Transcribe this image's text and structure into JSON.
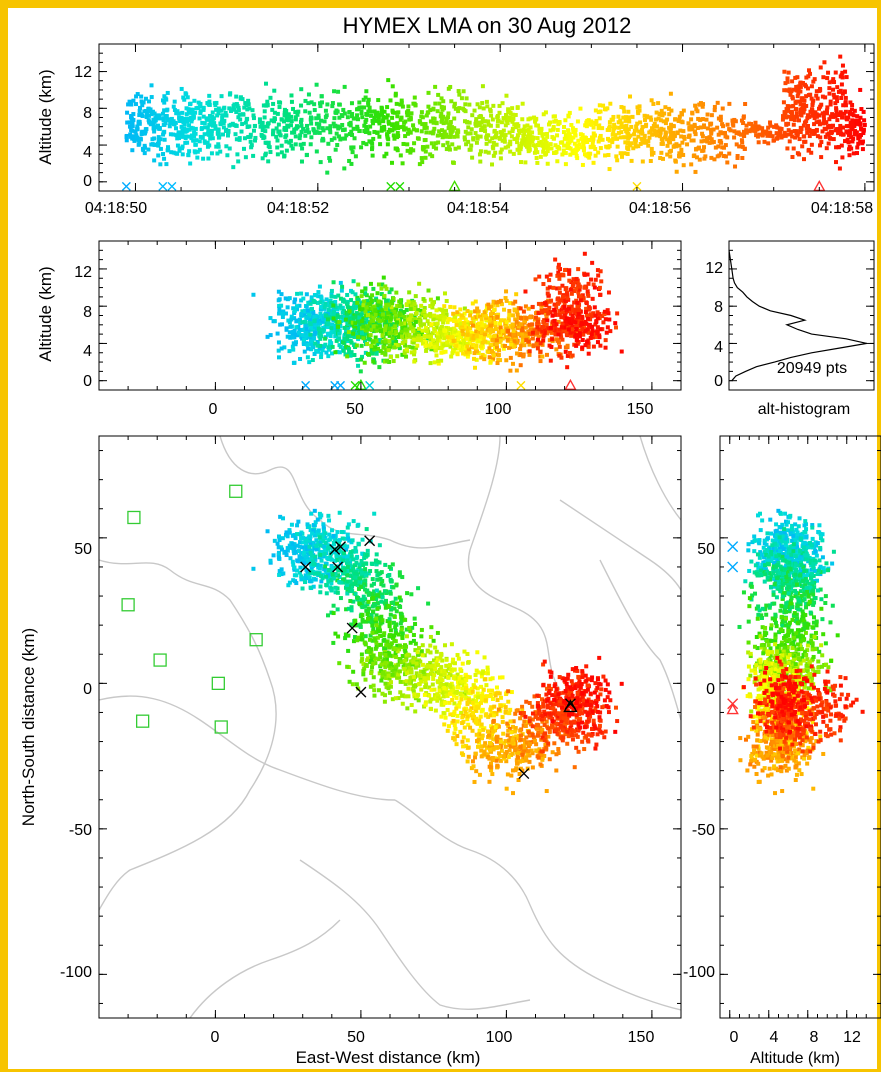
{
  "colors": {
    "frame": "#f7c400",
    "station": "#33cc33",
    "histogram": "#000000",
    "marker_dark": "#000000",
    "map": "#c8c8c8",
    "palette": [
      "#00aaff",
      "#00dddd",
      "#00e07a",
      "#33e000",
      "#aaee00",
      "#ffff00",
      "#ffaa00",
      "#ff5500",
      "#ff0000"
    ]
  },
  "chart_data": [
    {
      "id": "time-altitude",
      "type": "scatter",
      "title": "HYMEX LMA on 30 Aug 2012",
      "ylabel": "Altitude (km)",
      "xlabel": "",
      "x_tick_labels": [
        "04:18:50",
        "04:18:52",
        "04:18:54",
        "04:18:56",
        "04:18:58"
      ],
      "x_ticks_seconds": [
        50,
        52,
        54,
        56,
        58
      ],
      "xlim_seconds": [
        49.6,
        58.1
      ],
      "y_ticks": [
        0,
        4,
        8,
        12
      ],
      "ylim": [
        -1,
        15
      ],
      "color_by": "time",
      "bursts": [
        {
          "t_start": 49.9,
          "t_end": 51.0,
          "alt_lo": 1.5,
          "alt_hi": 10.5,
          "n": 380
        },
        {
          "t_start": 51.0,
          "t_end": 52.8,
          "alt_lo": 1.0,
          "alt_hi": 11.5,
          "n": 420
        },
        {
          "t_start": 52.8,
          "t_end": 54.2,
          "alt_lo": 1.0,
          "alt_hi": 11.0,
          "n": 360
        },
        {
          "t_start": 54.2,
          "t_end": 55.0,
          "alt_lo": 1.0,
          "alt_hi": 8.5,
          "n": 220
        },
        {
          "t_start": 55.0,
          "t_end": 56.7,
          "alt_lo": 0.5,
          "alt_hi": 10.0,
          "n": 420
        },
        {
          "t_start": 56.7,
          "t_end": 57.1,
          "alt_lo": 4.0,
          "alt_hi": 7.0,
          "n": 60
        },
        {
          "t_start": 57.1,
          "t_end": 57.8,
          "alt_lo": 0.5,
          "alt_hi": 14.5,
          "n": 300
        },
        {
          "t_start": 57.8,
          "t_end": 58.0,
          "alt_lo": 1.5,
          "alt_hi": 10.0,
          "n": 80
        }
      ],
      "markers": [
        {
          "t": 49.9,
          "alt": -0.5,
          "symbol": "x",
          "color": "#00aaff"
        },
        {
          "t": 50.3,
          "alt": -0.5,
          "symbol": "x",
          "color": "#00bbff"
        },
        {
          "t": 50.4,
          "alt": -0.5,
          "symbol": "x",
          "color": "#00bbff"
        },
        {
          "t": 52.8,
          "alt": -0.5,
          "symbol": "x",
          "color": "#22dd00"
        },
        {
          "t": 52.9,
          "alt": -0.5,
          "symbol": "x",
          "color": "#22dd00"
        },
        {
          "t": 53.5,
          "alt": -0.5,
          "symbol": "triangle",
          "color": "#44dd00"
        },
        {
          "t": 55.5,
          "alt": -0.5,
          "symbol": "x",
          "color": "#ffdd00"
        },
        {
          "t": 57.5,
          "alt": -0.5,
          "symbol": "triangle",
          "color": "#ff3333"
        }
      ]
    },
    {
      "id": "ew-altitude",
      "type": "scatter",
      "ylabel": "Altitude (km)",
      "x_ticks": [
        0,
        50,
        100,
        150
      ],
      "xlim": [
        -40,
        160
      ],
      "y_ticks": [
        0,
        4,
        8,
        12
      ],
      "ylim": [
        -1,
        15
      ],
      "color_by": "time",
      "markers": [
        {
          "x": 31,
          "alt": -0.5,
          "symbol": "x",
          "color": "#00aaff"
        },
        {
          "x": 41,
          "alt": -0.5,
          "symbol": "x",
          "color": "#00aaff"
        },
        {
          "x": 43,
          "alt": -0.5,
          "symbol": "x",
          "color": "#00aaff"
        },
        {
          "x": 48,
          "alt": -0.5,
          "symbol": "x",
          "color": "#22dd00"
        },
        {
          "x": 50,
          "alt": -0.5,
          "symbol": "triangle",
          "color": "#22dd00"
        },
        {
          "x": 53,
          "alt": -0.5,
          "symbol": "x",
          "color": "#00ccdd"
        },
        {
          "x": 105,
          "alt": -0.5,
          "symbol": "x",
          "color": "#ffdd00"
        },
        {
          "x": 122,
          "alt": -0.5,
          "symbol": "triangle",
          "color": "#ff3333"
        }
      ]
    },
    {
      "id": "alt-histogram",
      "type": "line",
      "caption": "alt-histogram",
      "annotation": "20949 pts",
      "y_ticks": [
        0,
        4,
        8,
        12
      ],
      "ylim": [
        -1,
        15
      ],
      "xlim": [
        0,
        1
      ],
      "profile": [
        {
          "alt": 0,
          "count": 0.02
        },
        {
          "alt": 0.5,
          "count": 0.05
        },
        {
          "alt": 1,
          "count": 0.12
        },
        {
          "alt": 1.5,
          "count": 0.2
        },
        {
          "alt": 2,
          "count": 0.33
        },
        {
          "alt": 2.5,
          "count": 0.45
        },
        {
          "alt": 3,
          "count": 0.6
        },
        {
          "alt": 3.5,
          "count": 0.8
        },
        {
          "alt": 4,
          "count": 1.0
        },
        {
          "alt": 4.5,
          "count": 0.85
        },
        {
          "alt": 5,
          "count": 0.6
        },
        {
          "alt": 5.5,
          "count": 0.5
        },
        {
          "alt": 6,
          "count": 0.42
        },
        {
          "alt": 6.5,
          "count": 0.55
        },
        {
          "alt": 7,
          "count": 0.45
        },
        {
          "alt": 7.5,
          "count": 0.3
        },
        {
          "alt": 8,
          "count": 0.22
        },
        {
          "alt": 8.5,
          "count": 0.17
        },
        {
          "alt": 9,
          "count": 0.13
        },
        {
          "alt": 9.5,
          "count": 0.1
        },
        {
          "alt": 10,
          "count": 0.06
        },
        {
          "alt": 10.5,
          "count": 0.04
        },
        {
          "alt": 11,
          "count": 0.03
        },
        {
          "alt": 12,
          "count": 0.02
        },
        {
          "alt": 13,
          "count": 0.01
        },
        {
          "alt": 14,
          "count": 0.0
        }
      ]
    },
    {
      "id": "plan-view",
      "type": "scatter",
      "xlabel": "East-West distance (km)",
      "ylabel": "North-South distance (km)",
      "x_ticks": [
        0,
        50,
        100,
        150
      ],
      "xlim": [
        -40,
        160
      ],
      "y_ticks": [
        -100,
        -50,
        0,
        50
      ],
      "ylim": [
        -115,
        85
      ],
      "color_by": "time",
      "stations": [
        {
          "x": -28,
          "y": 57
        },
        {
          "x": 7,
          "y": 66
        },
        {
          "x": -30,
          "y": 27
        },
        {
          "x": -19,
          "y": 8
        },
        {
          "x": 14,
          "y": 15
        },
        {
          "x": 1,
          "y": 0
        },
        {
          "x": -25,
          "y": -13
        },
        {
          "x": 2,
          "y": -15
        }
      ],
      "markers": [
        {
          "x": 41,
          "y": 46,
          "symbol": "x"
        },
        {
          "x": 43,
          "y": 47,
          "symbol": "x"
        },
        {
          "x": 42,
          "y": 40,
          "symbol": "x"
        },
        {
          "x": 31,
          "y": 40,
          "symbol": "x"
        },
        {
          "x": 53,
          "y": 49,
          "symbol": "x"
        },
        {
          "x": 47,
          "y": 19,
          "symbol": "x"
        },
        {
          "x": 50,
          "y": -3,
          "symbol": "x"
        },
        {
          "x": 106,
          "y": -31,
          "symbol": "x"
        },
        {
          "x": 122,
          "y": -7,
          "symbol": "x"
        },
        {
          "x": 122,
          "y": -8,
          "symbol": "triangle"
        }
      ]
    },
    {
      "id": "ns-altitude",
      "type": "scatter",
      "xlabel": "Altitude (km)",
      "x_ticks": [
        0,
        4,
        8,
        12
      ],
      "xlim": [
        -1,
        15
      ],
      "y_ticks": [
        -100,
        -50,
        0,
        50
      ],
      "ylim": [
        -115,
        85
      ],
      "color_by": "time",
      "markers": [
        {
          "alt": 0.3,
          "y": 47,
          "symbol": "x",
          "color": "#00aaff"
        },
        {
          "alt": 0.3,
          "y": 40,
          "symbol": "x",
          "color": "#00aaff"
        },
        {
          "alt": 0.3,
          "y": -7,
          "symbol": "x",
          "color": "#ff3333"
        },
        {
          "alt": 0.3,
          "y": -9,
          "symbol": "triangle",
          "color": "#ff3333"
        }
      ]
    }
  ]
}
